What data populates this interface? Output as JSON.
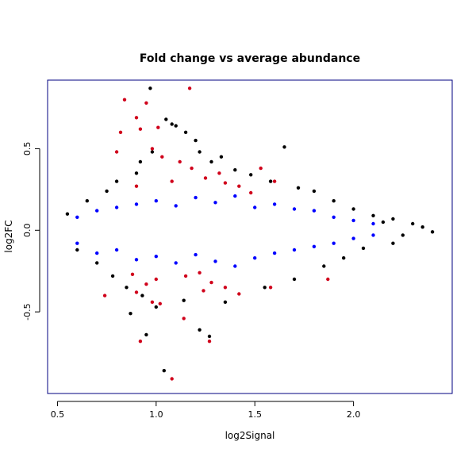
{
  "chart_data": {
    "type": "scatter",
    "title": "Fold change vs average abundance",
    "xlabel": "log2Signal",
    "ylabel": "log2FC",
    "xlim": [
      0.45,
      2.5
    ],
    "ylim": [
      -1.0,
      0.92
    ],
    "x_ticks": [
      "0.5",
      "1.0",
      "1.5",
      "2.0"
    ],
    "y_ticks": [
      "-0.5",
      "0.0",
      "0.5"
    ],
    "grid": false,
    "legend": "none",
    "colors": {
      "black": "#000000",
      "blue": "#0000ff",
      "red": "#d0021b",
      "frame": "#000080"
    },
    "series": [
      {
        "color": "black",
        "points": [
          [
            0.97,
            0.87
          ],
          [
            1.08,
            0.65
          ],
          [
            1.1,
            0.64
          ],
          [
            1.05,
            0.68
          ],
          [
            1.15,
            0.6
          ],
          [
            1.2,
            0.55
          ],
          [
            1.22,
            0.48
          ],
          [
            1.28,
            0.42
          ],
          [
            1.33,
            0.45
          ],
          [
            1.4,
            0.37
          ],
          [
            1.48,
            0.34
          ],
          [
            1.58,
            0.3
          ],
          [
            1.65,
            0.51
          ],
          [
            1.72,
            0.26
          ],
          [
            1.8,
            0.24
          ],
          [
            1.9,
            0.18
          ],
          [
            2.0,
            0.13
          ],
          [
            2.1,
            0.09
          ],
          [
            2.2,
            0.07
          ],
          [
            2.3,
            0.04
          ],
          [
            2.4,
            -0.01
          ],
          [
            2.35,
            0.02
          ],
          [
            2.25,
            -0.03
          ],
          [
            2.15,
            0.05
          ],
          [
            1.04,
            -0.86
          ],
          [
            1.22,
            -0.61
          ],
          [
            1.27,
            -0.65
          ],
          [
            0.95,
            -0.64
          ],
          [
            0.87,
            -0.51
          ],
          [
            1.0,
            -0.47
          ],
          [
            1.14,
            -0.43
          ],
          [
            1.35,
            -0.44
          ],
          [
            1.55,
            -0.35
          ],
          [
            1.7,
            -0.3
          ],
          [
            1.85,
            -0.22
          ],
          [
            1.95,
            -0.17
          ],
          [
            2.05,
            -0.11
          ],
          [
            2.2,
            -0.08
          ],
          [
            0.65,
            0.18
          ],
          [
            0.75,
            0.24
          ],
          [
            0.8,
            0.3
          ],
          [
            0.9,
            0.35
          ],
          [
            0.92,
            0.42
          ],
          [
            0.98,
            0.48
          ],
          [
            0.55,
            0.1
          ],
          [
            0.6,
            -0.12
          ],
          [
            0.7,
            -0.2
          ],
          [
            0.78,
            -0.28
          ],
          [
            0.85,
            -0.35
          ],
          [
            0.93,
            -0.4
          ]
        ]
      },
      {
        "color": "red",
        "points": [
          [
            1.17,
            0.87
          ],
          [
            0.84,
            0.8
          ],
          [
            0.95,
            0.78
          ],
          [
            0.9,
            0.69
          ],
          [
            0.92,
            0.62
          ],
          [
            0.82,
            0.6
          ],
          [
            1.01,
            0.63
          ],
          [
            0.8,
            0.48
          ],
          [
            0.98,
            0.5
          ],
          [
            1.03,
            0.45
          ],
          [
            1.12,
            0.42
          ],
          [
            1.18,
            0.38
          ],
          [
            1.25,
            0.32
          ],
          [
            1.32,
            0.35
          ],
          [
            1.35,
            0.29
          ],
          [
            1.42,
            0.27
          ],
          [
            1.48,
            0.23
          ],
          [
            1.53,
            0.38
          ],
          [
            1.6,
            0.3
          ],
          [
            0.9,
            0.27
          ],
          [
            1.08,
            0.3
          ],
          [
            1.08,
            -0.91
          ],
          [
            0.92,
            -0.68
          ],
          [
            1.27,
            -0.68
          ],
          [
            1.14,
            -0.54
          ],
          [
            1.02,
            -0.45
          ],
          [
            0.98,
            -0.44
          ],
          [
            0.9,
            -0.38
          ],
          [
            0.95,
            -0.33
          ],
          [
            1.0,
            -0.3
          ],
          [
            1.15,
            -0.28
          ],
          [
            1.24,
            -0.37
          ],
          [
            1.28,
            -0.32
          ],
          [
            1.35,
            -0.35
          ],
          [
            1.42,
            -0.39
          ],
          [
            1.58,
            -0.35
          ],
          [
            1.87,
            -0.3
          ],
          [
            0.74,
            -0.4
          ],
          [
            0.88,
            -0.27
          ],
          [
            1.22,
            -0.26
          ]
        ]
      },
      {
        "color": "blue",
        "points": [
          [
            0.6,
            0.08
          ],
          [
            0.7,
            0.12
          ],
          [
            0.8,
            0.14
          ],
          [
            0.9,
            0.16
          ],
          [
            1.0,
            0.18
          ],
          [
            1.1,
            0.15
          ],
          [
            1.2,
            0.2
          ],
          [
            1.3,
            0.17
          ],
          [
            1.4,
            0.21
          ],
          [
            1.5,
            0.14
          ],
          [
            1.6,
            0.16
          ],
          [
            1.7,
            0.13
          ],
          [
            1.8,
            0.12
          ],
          [
            1.9,
            0.08
          ],
          [
            2.0,
            0.06
          ],
          [
            2.1,
            0.04
          ],
          [
            0.6,
            -0.08
          ],
          [
            0.7,
            -0.14
          ],
          [
            0.8,
            -0.12
          ],
          [
            0.9,
            -0.18
          ],
          [
            1.0,
            -0.16
          ],
          [
            1.1,
            -0.2
          ],
          [
            1.2,
            -0.15
          ],
          [
            1.3,
            -0.19
          ],
          [
            1.4,
            -0.22
          ],
          [
            1.5,
            -0.17
          ],
          [
            1.6,
            -0.14
          ],
          [
            1.7,
            -0.12
          ],
          [
            1.8,
            -0.1
          ],
          [
            1.9,
            -0.08
          ],
          [
            2.0,
            -0.05
          ],
          [
            2.1,
            -0.03
          ]
        ]
      }
    ]
  }
}
